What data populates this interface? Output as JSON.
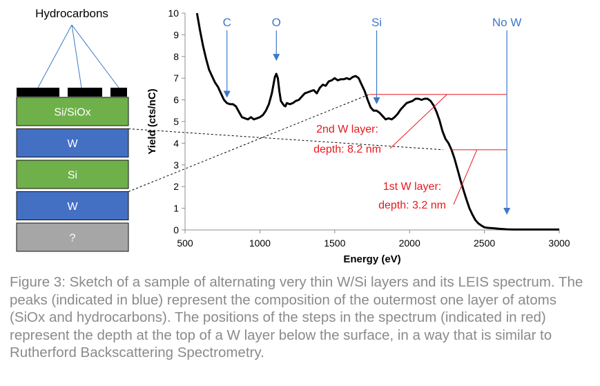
{
  "figure": {
    "caption": "Figure 3: Sketch of a sample of alternating very thin W/Si layers and its LEIS spectrum. The peaks (indicated in blue) represent the composition of the outermost one layer of atoms (SiOx and hydrocarbons). The positions of the steps in the spectrum (indicated in red) represent the depth at the top of a W layer below the surface, in a way that is similar to Rutherford Backscattering Spectrometry."
  },
  "sample_sketch": {
    "hydrocarbons_label": "Hydrocarbons",
    "layers": [
      {
        "label": "Si/SiOx",
        "color": "#6fb04a"
      },
      {
        "label": "W",
        "color": "#4470c4"
      },
      {
        "label": "Si",
        "color": "#6fb04a"
      },
      {
        "label": "W",
        "color": "#4470c4"
      },
      {
        "label": "?",
        "color": "#a6a6a6"
      }
    ]
  },
  "chart_data": {
    "type": "line",
    "xlabel": "Energy (eV)",
    "ylabel": "Yield (cts/nC)",
    "xlim": [
      500,
      3000
    ],
    "ylim": [
      0,
      10
    ],
    "xticks": [
      500,
      1000,
      1500,
      2000,
      2500,
      3000
    ],
    "yticks": [
      0,
      1,
      2,
      3,
      4,
      5,
      6,
      7,
      8,
      9,
      10
    ],
    "grid": false,
    "line_color": "#000000",
    "series": [
      {
        "x": [
          580,
          600,
          620,
          640,
          660,
          680,
          700,
          720,
          740,
          760,
          780,
          800,
          820,
          840,
          860,
          880,
          900,
          920,
          940,
          960,
          980,
          1000,
          1020,
          1040,
          1060,
          1080,
          1100,
          1110,
          1120,
          1130,
          1140,
          1150,
          1160,
          1170,
          1180,
          1200,
          1220,
          1240,
          1260,
          1280,
          1300,
          1320,
          1340,
          1360,
          1380,
          1400,
          1420,
          1440,
          1460,
          1480,
          1500,
          1520,
          1540,
          1560,
          1580,
          1600,
          1620,
          1640,
          1660,
          1680,
          1700,
          1720,
          1740,
          1760,
          1780,
          1800,
          1820,
          1840,
          1860,
          1880,
          1900,
          1920,
          1940,
          1960,
          1980,
          2000,
          2020,
          2040,
          2060,
          2080,
          2100,
          2120,
          2140,
          2160,
          2180,
          2200,
          2220,
          2240,
          2260,
          2280,
          2300,
          2320,
          2340,
          2360,
          2380,
          2400,
          2420,
          2440,
          2460,
          2480,
          2500,
          2520,
          2540,
          2560,
          2600,
          2650,
          2700,
          2750,
          2800,
          2850,
          2900,
          2950,
          3000
        ],
        "y": [
          10.0,
          9.2,
          8.5,
          7.9,
          7.4,
          7.1,
          6.8,
          6.6,
          6.3,
          6.0,
          5.85,
          5.8,
          5.8,
          5.7,
          5.45,
          5.2,
          5.15,
          5.1,
          5.2,
          5.1,
          5.15,
          5.2,
          5.3,
          5.5,
          5.8,
          6.3,
          7.05,
          7.2,
          7.0,
          6.4,
          5.95,
          5.85,
          5.75,
          5.7,
          5.85,
          5.8,
          5.85,
          5.95,
          6.0,
          6.15,
          6.3,
          6.35,
          6.4,
          6.45,
          6.3,
          6.55,
          6.7,
          6.65,
          6.85,
          6.9,
          7.0,
          6.9,
          6.95,
          6.95,
          7.0,
          6.95,
          7.05,
          7.1,
          7.0,
          6.7,
          6.4,
          6.0,
          5.65,
          5.5,
          5.5,
          5.4,
          5.25,
          5.1,
          5.15,
          5.1,
          5.2,
          5.35,
          5.55,
          5.7,
          5.85,
          5.9,
          5.95,
          6.05,
          6.05,
          6.0,
          6.05,
          6.05,
          5.95,
          5.75,
          5.45,
          5.05,
          4.55,
          4.2,
          4.0,
          3.7,
          3.3,
          2.8,
          2.3,
          1.85,
          1.4,
          1.0,
          0.7,
          0.45,
          0.3,
          0.2,
          0.12,
          0.1,
          0.09,
          0.08,
          0.05,
          0.03,
          0.02,
          0.02,
          0.02,
          0.02,
          0.02,
          0.02,
          0.02
        ]
      }
    ],
    "peak_markers": [
      {
        "label": "C",
        "energy": 780,
        "arrow_end": 6.1
      },
      {
        "label": "O",
        "energy": 1110,
        "arrow_end": 7.8
      },
      {
        "label": "Si",
        "energy": 1780,
        "arrow_end": 5.8
      },
      {
        "label": "No W",
        "energy": 2650,
        "arrow_end": 0.7
      }
    ],
    "peak_marker_color": "#3d78c9",
    "steps": [
      {
        "label_line1": "2nd W layer:",
        "label_line2": "depth: 8.2 nm",
        "yield": 6.25,
        "energy_start": 1730,
        "energy_end": 2650,
        "corner_energy": 2250
      },
      {
        "label_line1": "1st W layer:",
        "label_line2": "depth: 3.2 nm",
        "yield": 3.7,
        "energy_start": 2270,
        "energy_end": 2650,
        "corner_energy": 2450
      }
    ],
    "step_color": "#e8171c"
  }
}
